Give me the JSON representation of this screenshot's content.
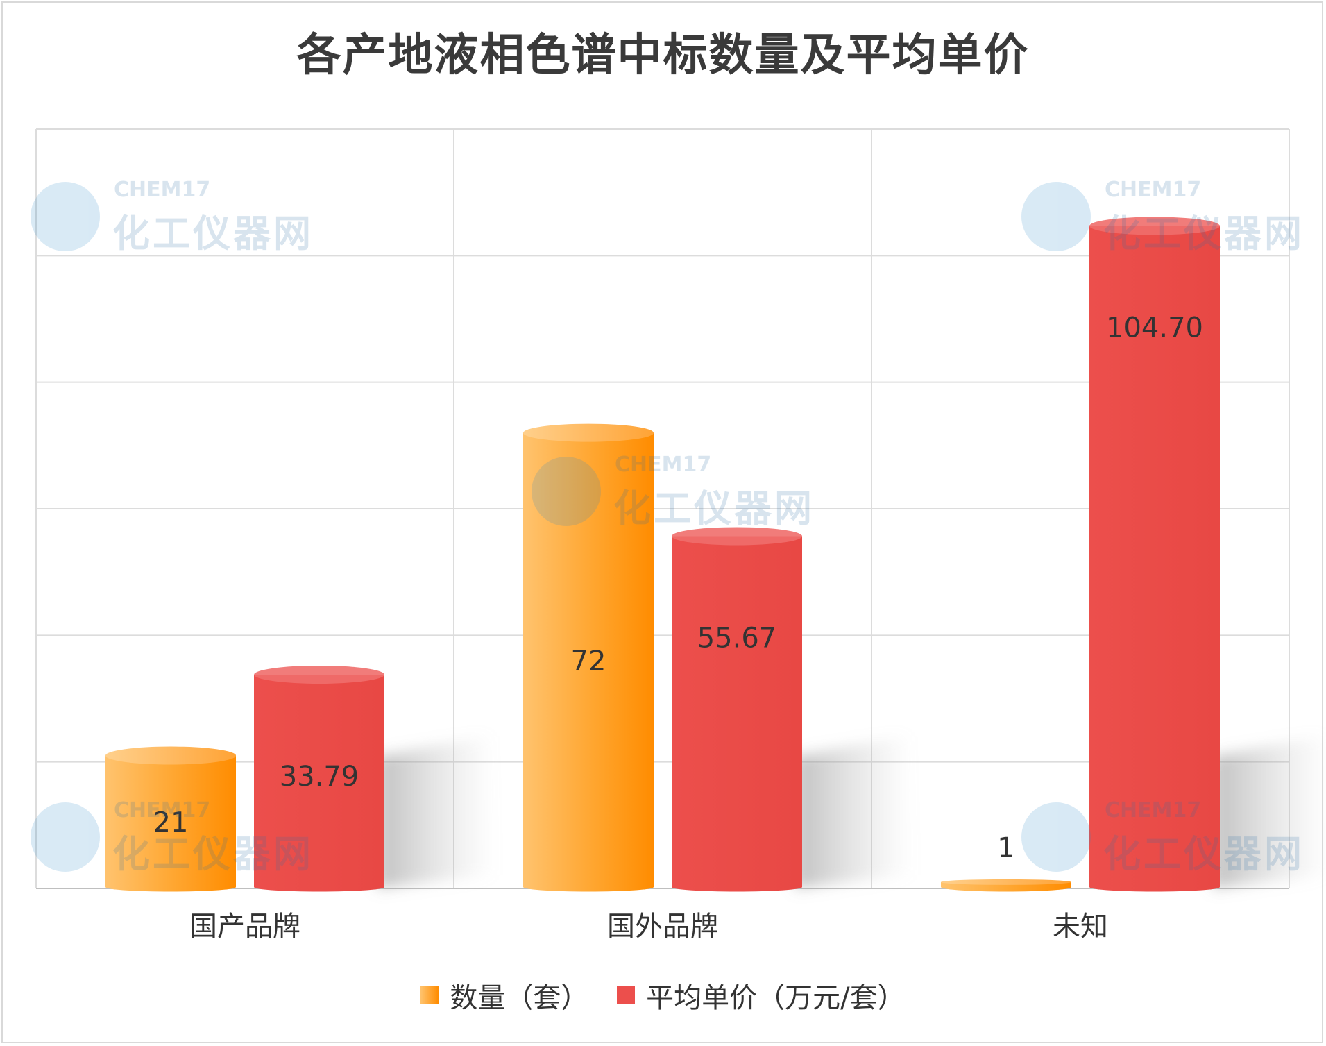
{
  "chart_data": {
    "type": "bar",
    "title": "各产地液相色谱中标数量及平均单价",
    "categories": [
      "国产品牌",
      "国外品牌",
      "未知"
    ],
    "series": [
      {
        "name": "数量（套）",
        "values": [
          21,
          72,
          1
        ],
        "labels": [
          "21",
          "72",
          "1"
        ],
        "color": "#ff9a1a"
      },
      {
        "name": "平均单价（万元/套）",
        "values": [
          33.79,
          55.67,
          104.7
        ],
        "labels": [
          "33.79",
          "55.67",
          "104.70"
        ],
        "color": "#ec4f4c"
      }
    ],
    "ylim": [
      0,
      120
    ],
    "grid": true,
    "legend_position": "bottom"
  },
  "watermark": {
    "brand": "CHEM17",
    "name": "化工仪器网"
  }
}
